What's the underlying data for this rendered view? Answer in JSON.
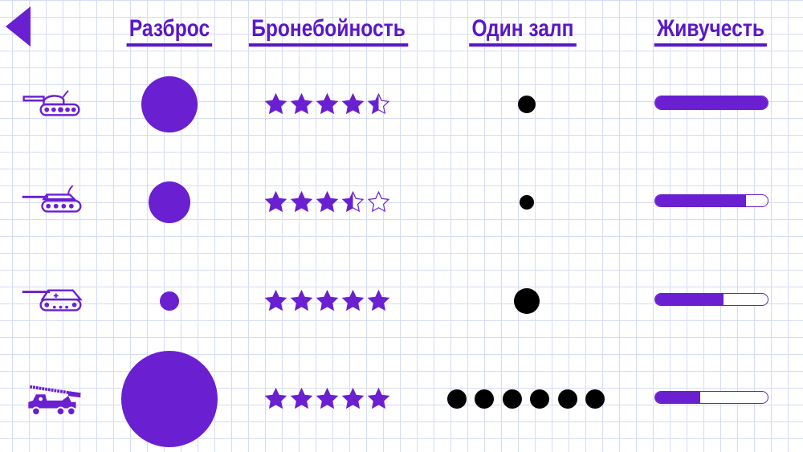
{
  "nav": {
    "back_icon": "back-triangle-icon"
  },
  "headers": [
    "Разброс",
    "Бронебойность",
    "Один залп",
    "Живучесть"
  ],
  "colors": {
    "accent": "#6a1fd1",
    "grid": "#d6dcf5",
    "shot": "#000000"
  },
  "units": [
    {
      "icon": "light-tank-icon",
      "armor_piercing_stars": 4.5,
      "salvo_shots": 1,
      "survivability": 1.0
    },
    {
      "icon": "artillery-tank-icon",
      "armor_piercing_stars": 3.5,
      "salvo_shots": 1,
      "survivability": 0.81
    },
    {
      "icon": "self-propelled-gun-icon",
      "armor_piercing_stars": 5,
      "salvo_shots": 1,
      "survivability": 0.61
    },
    {
      "icon": "rocket-launcher-truck-icon",
      "armor_piercing_stars": 5,
      "salvo_shots": 6,
      "survivability": 0.4
    }
  ]
}
